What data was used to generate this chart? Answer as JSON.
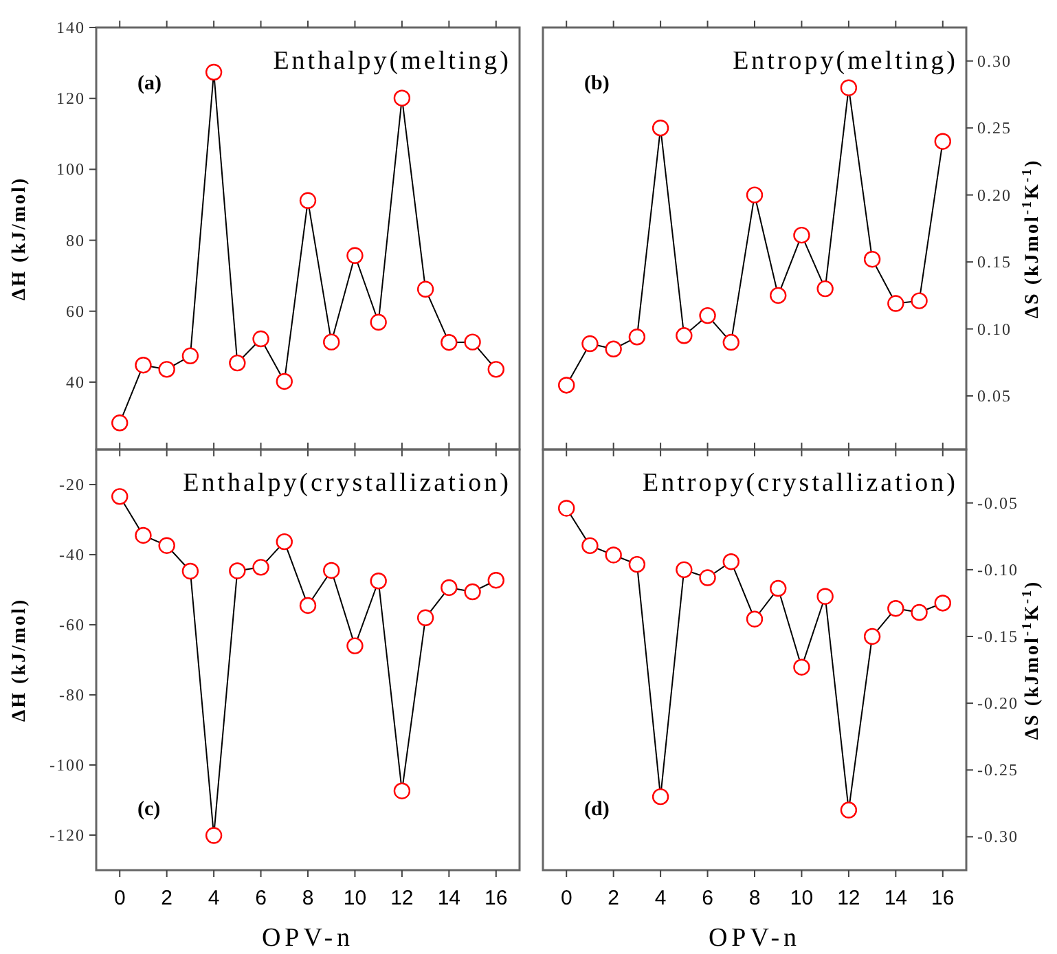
{
  "chart_data": [
    {
      "type": "line",
      "title": "Enthalpy(melting)",
      "ylabel": "ΔH (kJ/mol)",
      "annotations": [
        "(a)"
      ],
      "x": [
        0,
        1,
        2,
        3,
        4,
        5,
        6,
        7,
        8,
        9,
        10,
        11,
        12,
        13,
        14,
        15,
        16
      ],
      "xlim": [
        -1,
        17
      ],
      "xticks": [
        0,
        2,
        4,
        6,
        8,
        10,
        12,
        14,
        16
      ],
      "ylim": [
        21,
        140
      ],
      "yticks": [
        40,
        60,
        80,
        100,
        120,
        140
      ],
      "tick_labels": "y",
      "marker": "circle",
      "line_style": "solid",
      "grid": false,
      "series": [
        {
          "color": "#ff0000",
          "values": [
            28.5,
            44.8,
            43.6,
            47.4,
            127.4,
            45.4,
            52.2,
            40.2,
            91.2,
            51.3,
            75.7,
            56.9,
            120.1,
            66.2,
            51.2,
            51.3,
            43.6
          ]
        }
      ]
    },
    {
      "type": "line",
      "title": "Entropy(melting)",
      "ylabel": "ΔS (kJmol$^{-1}$K$^{-1}$)",
      "annotations": [
        "(b)"
      ],
      "x": [
        0,
        1,
        2,
        3,
        4,
        5,
        6,
        7,
        8,
        9,
        10,
        11,
        12,
        13,
        14,
        15,
        16
      ],
      "xlim": [
        -1,
        17
      ],
      "xticks": [
        0,
        2,
        4,
        6,
        8,
        10,
        12,
        14,
        16
      ],
      "ylim": [
        0.01,
        0.325
      ],
      "yticks": [
        {
          "value": 0.05,
          "label": "0.05"
        },
        {
          "value": 0.1,
          "label": "0.10"
        },
        {
          "value": 0.15,
          "label": "0.15"
        },
        {
          "value": 0.2,
          "label": "0.20"
        },
        {
          "value": 0.25,
          "label": "0.25"
        },
        {
          "value": 0.3,
          "label": "0.30"
        }
      ],
      "tick_labels": "y",
      "marker": "circle",
      "line_style": "solid",
      "grid": false,
      "series": [
        {
          "color": "#ff0000",
          "values": [
            0.058,
            0.089,
            0.085,
            0.094,
            0.25,
            0.095,
            0.11,
            0.09,
            0.2,
            0.125,
            0.17,
            0.13,
            0.28,
            0.152,
            0.119,
            0.121,
            0.24
          ]
        }
      ]
    },
    {
      "type": "line",
      "title": "Enthalpy(crystallization)",
      "ylabel": "ΔH (kJ/mol)",
      "xlabel": "OPV-n",
      "annotations": [
        "(c)"
      ],
      "x": [
        0,
        1,
        2,
        3,
        4,
        5,
        6,
        7,
        8,
        9,
        10,
        11,
        12,
        13,
        14,
        15,
        16
      ],
      "xlim": [
        -1,
        17
      ],
      "xticks": [
        0,
        2,
        4,
        6,
        8,
        10,
        12,
        14,
        16
      ],
      "ylim": [
        -130,
        -10
      ],
      "yticks": [
        -120,
        -100,
        -80,
        -60,
        -40,
        -20
      ],
      "marker": "circle",
      "line_style": "solid",
      "grid": false,
      "series": [
        {
          "color": "#ff0000",
          "values": [
            -23.4,
            -34.5,
            -37.4,
            -44.7,
            -120.1,
            -44.6,
            -43.6,
            -36.3,
            -54.5,
            -44.5,
            -66,
            -47.5,
            -107.4,
            -58,
            -49.4,
            -50.6,
            -47.3
          ]
        }
      ]
    },
    {
      "type": "line",
      "title": "Entropy(crystallization)",
      "ylabel": "ΔS (kJmol$^{-1}$K$^{-1}$)",
      "xlabel": "OPV-n",
      "annotations": [
        "(d)"
      ],
      "x": [
        0,
        1,
        2,
        3,
        4,
        5,
        6,
        7,
        8,
        9,
        10,
        11,
        12,
        13,
        14,
        15,
        16
      ],
      "xlim": [
        -1,
        17
      ],
      "xticks": [
        0,
        2,
        4,
        6,
        8,
        10,
        12,
        14,
        16
      ],
      "ylim": [
        -0.325,
        -0.01
      ],
      "yticks": [
        {
          "value": -0.3,
          "label": "-0.30"
        },
        {
          "value": -0.25,
          "label": "-0.25"
        },
        {
          "value": -0.2,
          "label": "-0.20"
        },
        {
          "value": -0.15,
          "label": "-0.15"
        },
        {
          "value": -0.1,
          "label": "-0.10"
        },
        {
          "value": -0.05,
          "label": "-0.05"
        }
      ],
      "marker": "circle",
      "line_style": "solid",
      "grid": false,
      "series": [
        {
          "color": "#ff0000",
          "values": [
            -0.054,
            -0.082,
            -0.089,
            -0.096,
            -0.27,
            -0.1,
            -0.106,
            -0.094,
            -0.137,
            -0.114,
            -0.173,
            -0.12,
            -0.28,
            -0.15,
            -0.129,
            -0.132,
            -0.125
          ]
        }
      ]
    }
  ]
}
